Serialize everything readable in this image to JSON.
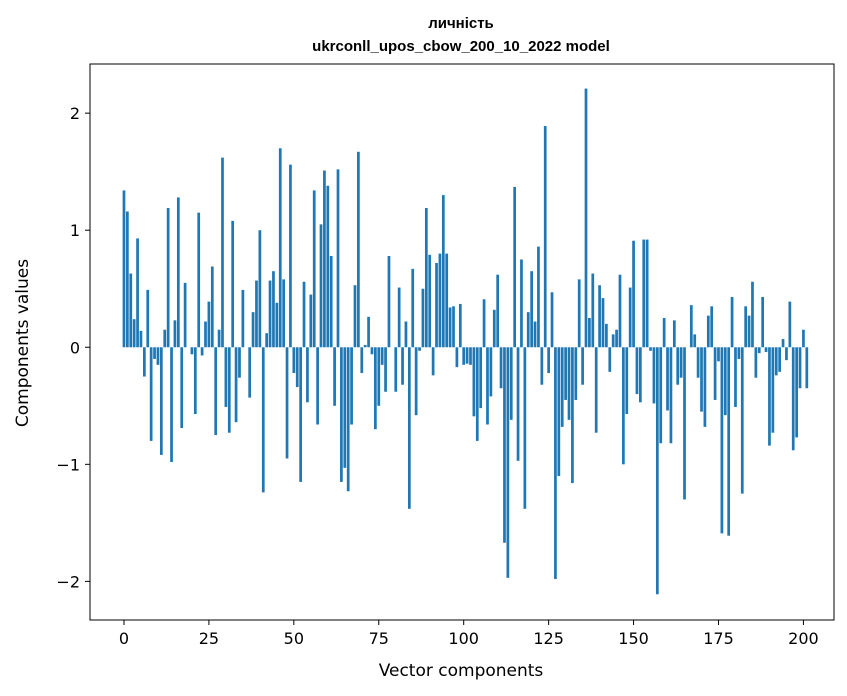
{
  "chart_data": {
    "type": "bar",
    "title_line1": "личність",
    "title_line2": "ukrconll_upos_cbow_200_10_2022 model",
    "xlabel": "Vector components",
    "ylabel": "Components values",
    "xlim": [
      -10,
      209
    ],
    "ylim": [
      -2.33,
      2.42
    ],
    "xticks": [
      0,
      25,
      50,
      75,
      100,
      125,
      150,
      175,
      200
    ],
    "xtick_labels": [
      "0",
      "25",
      "50",
      "75",
      "100",
      "125",
      "150",
      "175",
      "200"
    ],
    "yticks": [
      -2,
      -1,
      0,
      1,
      2
    ],
    "ytick_labels": [
      "−2",
      "−1",
      "0",
      "1",
      "2"
    ],
    "bar_color": "#1f77b4",
    "grid": false,
    "values": [
      1.34,
      1.16,
      0.63,
      0.24,
      0.93,
      0.14,
      -0.25,
      0.49,
      -0.8,
      -0.1,
      -0.15,
      -0.92,
      0.15,
      1.19,
      -0.98,
      0.23,
      1.28,
      -0.69,
      0.55,
      0.0,
      -0.06,
      -0.57,
      1.15,
      -0.07,
      0.22,
      0.39,
      0.69,
      -0.75,
      0.15,
      1.62,
      -0.51,
      -0.73,
      1.08,
      -0.64,
      -0.26,
      0.49,
      0.0,
      -0.43,
      0.3,
      0.57,
      1.0,
      -1.24,
      0.12,
      0.57,
      0.65,
      0.38,
      1.7,
      0.58,
      -0.95,
      1.56,
      -0.22,
      -0.34,
      -1.15,
      0.56,
      -0.47,
      0.45,
      1.34,
      -0.66,
      1.05,
      1.51,
      1.38,
      0.78,
      -0.5,
      1.52,
      -1.15,
      -1.03,
      -1.23,
      -0.66,
      0.53,
      1.67,
      -0.22,
      0.02,
      0.26,
      -0.06,
      -0.7,
      -0.5,
      -0.15,
      -0.38,
      0.78,
      0.0,
      -0.38,
      0.51,
      -0.32,
      0.22,
      -1.38,
      0.67,
      -0.58,
      -0.03,
      0.5,
      1.19,
      0.79,
      -0.24,
      0.72,
      0.8,
      1.3,
      0.8,
      0.34,
      0.35,
      -0.17,
      0.37,
      -0.15,
      -0.14,
      -0.15,
      -0.59,
      -0.8,
      -0.52,
      0.41,
      -0.66,
      -0.42,
      0.32,
      0.62,
      -0.35,
      -1.67,
      -1.97,
      -0.62,
      1.37,
      -0.97,
      0.75,
      -1.38,
      0.3,
      0.65,
      0.22,
      0.86,
      -0.32,
      1.89,
      -0.22,
      0.47,
      -1.98,
      -1.1,
      -0.68,
      -0.45,
      -0.62,
      -1.16,
      -0.45,
      0.58,
      -0.32,
      2.21,
      0.25,
      0.63,
      -0.73,
      0.53,
      0.42,
      0.2,
      -0.21,
      0.11,
      0.15,
      0.62,
      -1.0,
      -0.57,
      0.51,
      0.91,
      -0.4,
      -0.47,
      0.92,
      0.92,
      -0.03,
      -0.48,
      -2.11,
      -0.82,
      0.25,
      -0.54,
      -0.82,
      0.23,
      -0.32,
      -0.26,
      -1.3,
      0.0,
      0.36,
      0.11,
      -0.26,
      -0.55,
      -0.68,
      0.27,
      0.35,
      -0.45,
      -0.12,
      -1.59,
      -0.58,
      -1.61,
      0.43,
      -0.51,
      -0.1,
      -1.25,
      0.35,
      0.27,
      0.56,
      -0.26,
      -0.05,
      0.43,
      -0.04,
      -0.84,
      -0.73,
      -0.24,
      -0.21,
      0.07,
      -0.11,
      0.39,
      -0.88,
      -0.77,
      -0.35,
      0.15,
      -0.35
    ]
  }
}
